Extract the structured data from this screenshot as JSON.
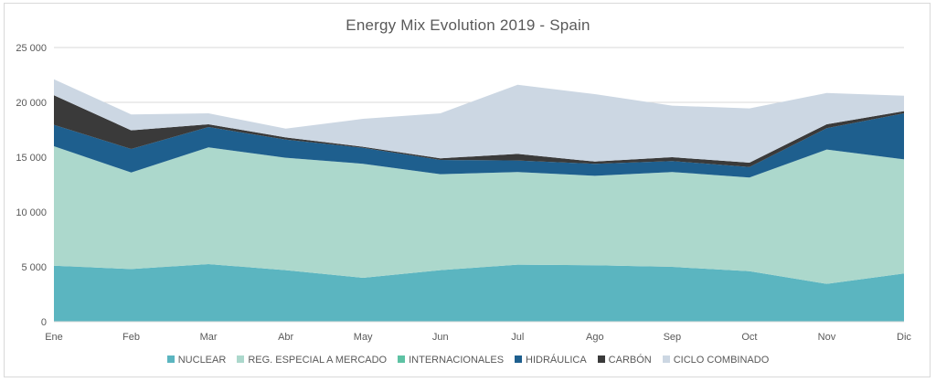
{
  "chart_data": {
    "type": "area",
    "stacked": true,
    "title": "Energy Mix Evolution 2019 - Spain",
    "categories": [
      "Ene",
      "Feb",
      "Mar",
      "Abr",
      "May",
      "Jun",
      "Jul",
      "Ago",
      "Sep",
      "Oct",
      "Nov",
      "Dic"
    ],
    "y_ticks": [
      "0",
      "5 000",
      "10 000",
      "15 000",
      "20 000",
      "25 000"
    ],
    "y_tick_values": [
      0,
      5000,
      10000,
      15000,
      20000,
      25000
    ],
    "ylim": [
      0,
      25000
    ],
    "grid": true,
    "legend_position": "bottom",
    "series": [
      {
        "name": "NUCLEAR",
        "color": "#5bb5c0",
        "values": [
          5100,
          4800,
          5250,
          4700,
          4000,
          4700,
          5200,
          5150,
          5000,
          4600,
          3450,
          4400
        ]
      },
      {
        "name": "REG. ESPECIAL A MERCADO",
        "color": "#acd8cc",
        "values": [
          10900,
          8800,
          10650,
          10250,
          10400,
          8750,
          8450,
          8150,
          8650,
          8550,
          12250,
          10400
        ]
      },
      {
        "name": "INTERNACIONALES",
        "color": "#5ec2a4",
        "values": [
          0,
          0,
          0,
          0,
          0,
          0,
          0,
          0,
          0,
          0,
          0,
          0
        ]
      },
      {
        "name": "HIDRÁULICA",
        "color": "#1e5f8e",
        "values": [
          1950,
          2150,
          1850,
          1650,
          1450,
          1300,
          1050,
          1100,
          1000,
          950,
          1950,
          4200
        ]
      },
      {
        "name": "CARBÓN",
        "color": "#3a3a3a",
        "values": [
          2700,
          1700,
          250,
          200,
          100,
          150,
          600,
          200,
          350,
          400,
          350,
          200
        ]
      },
      {
        "name": "CICLO COMBINADO",
        "color": "#ccd7e3",
        "values": [
          1450,
          1450,
          1000,
          800,
          2550,
          4100,
          6300,
          6150,
          4700,
          4950,
          2850,
          1400
        ]
      }
    ]
  }
}
